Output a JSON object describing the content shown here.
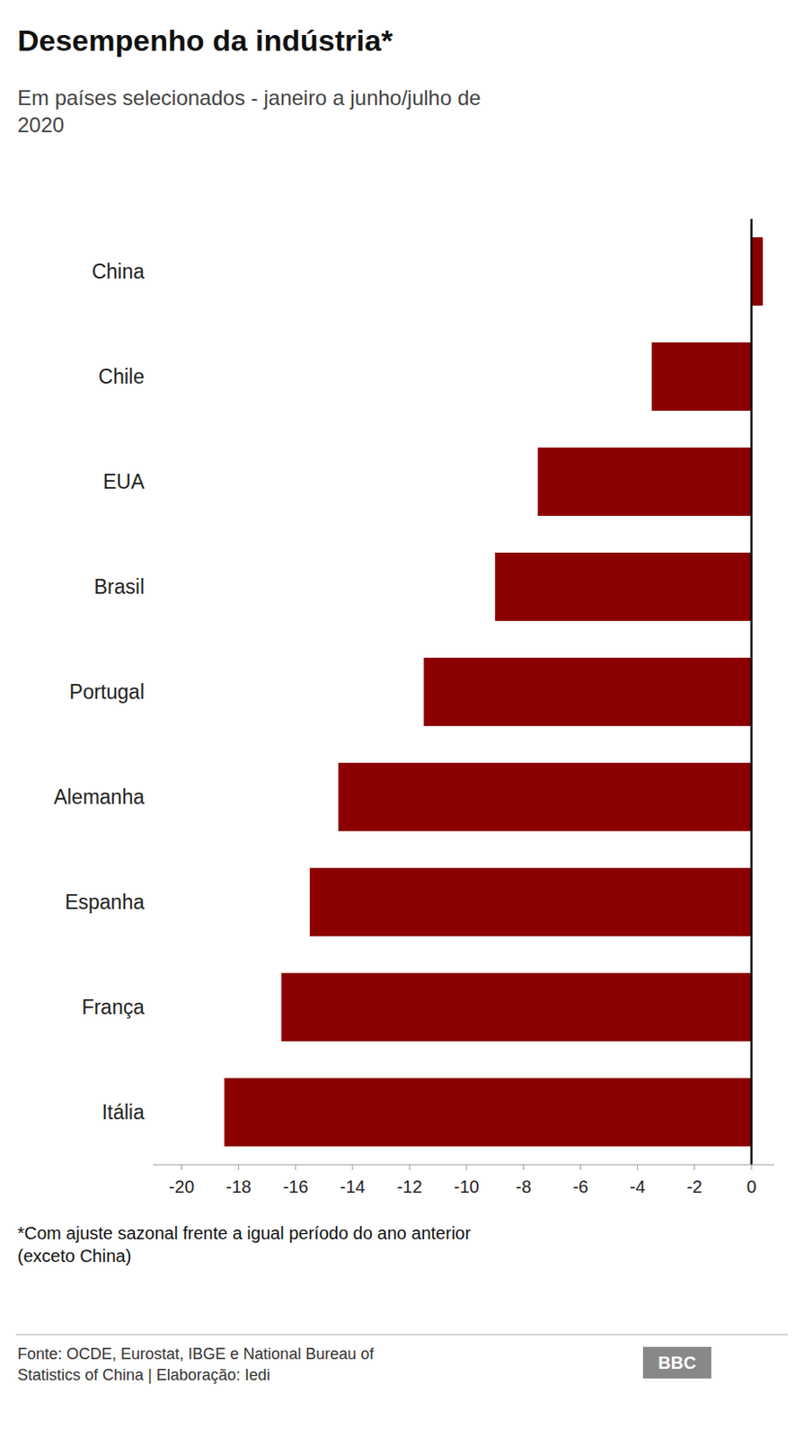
{
  "chart_data": {
    "type": "bar",
    "orientation": "horizontal",
    "title": "Desempenho da indústria*",
    "subtitle": "Em países selecionados - janeiro a junho/julho de\n2020",
    "categories": [
      "China",
      "Chile",
      "EUA",
      "Brasil",
      "Portugal",
      "Alemanha",
      "Espanha",
      "França",
      "Itália"
    ],
    "values": [
      0.4,
      -3.5,
      -7.5,
      -9.0,
      -11.5,
      -14.5,
      -15.5,
      -16.5,
      -18.5
    ],
    "color": "#8B0000",
    "xlim": [
      -21,
      0.8
    ],
    "xticks": [
      -20,
      -18,
      -16,
      -14,
      -12,
      -10,
      -8,
      -6,
      -4,
      -2,
      0
    ],
    "grid": false,
    "footnote": "*Com ajuste sazonal frente a igual período do ano anterior\n(exceto China)",
    "source": "Fonte: OCDE, Eurostat, IBGE e National Bureau of\nStatistics of China | Elaboração: Iedi",
    "annotations": [
      "BBC"
    ]
  }
}
